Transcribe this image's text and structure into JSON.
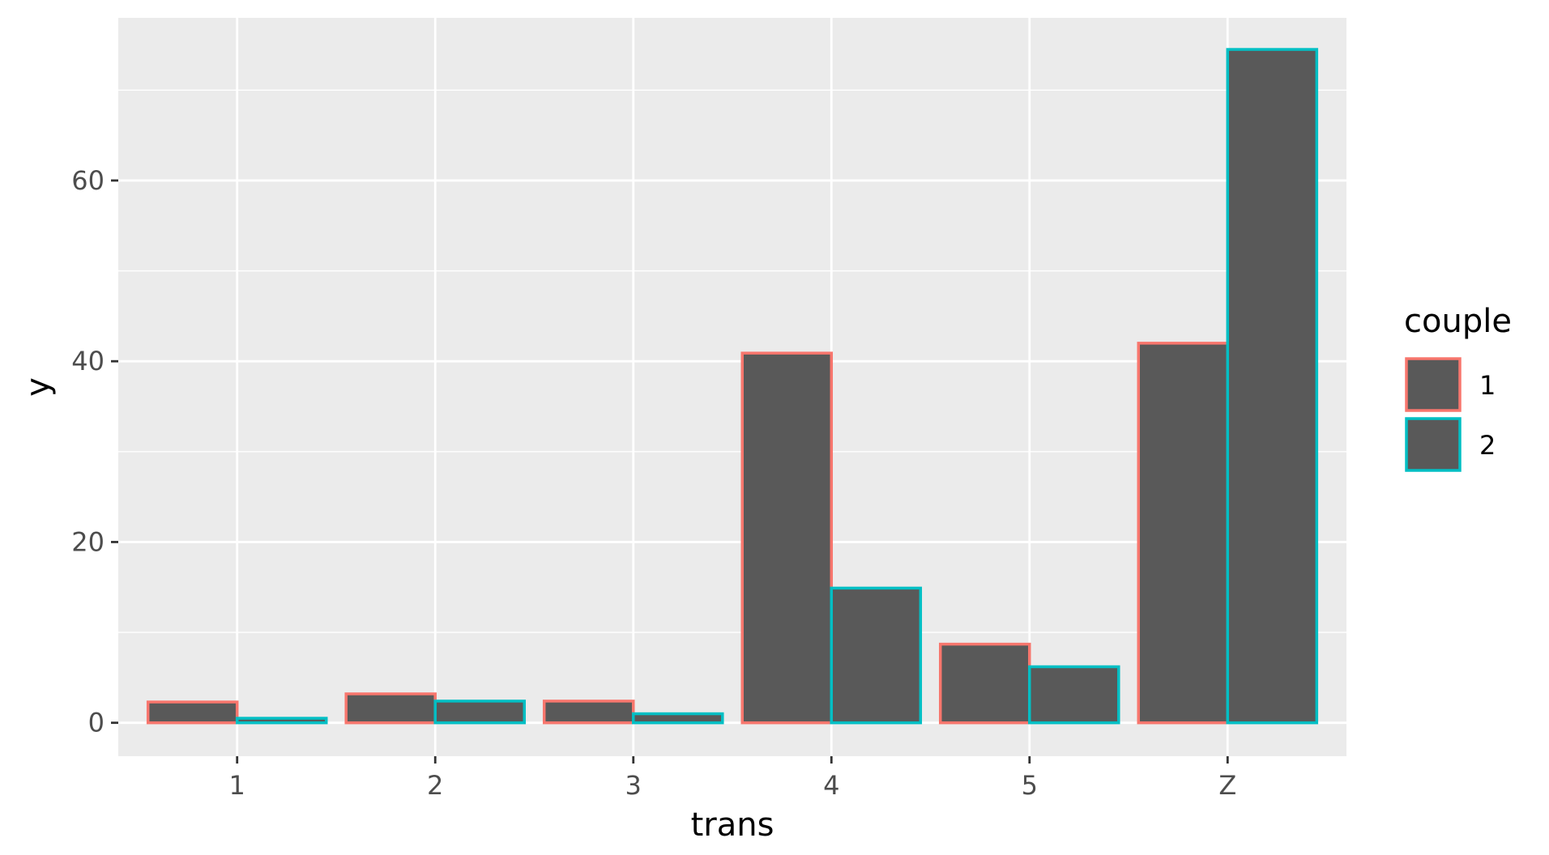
{
  "chart_data": {
    "type": "bar",
    "categories": [
      "1",
      "2",
      "3",
      "4",
      "5",
      "Z"
    ],
    "xlabel": "trans",
    "ylabel": "y",
    "ylim": [
      -3.7,
      78
    ],
    "yticks": [
      0,
      20,
      40,
      60
    ],
    "grid": true,
    "legend": {
      "title": "couple",
      "position": "right"
    },
    "series": [
      {
        "name": "1",
        "color": "#F8766D",
        "values": [
          2.3,
          3.2,
          2.4,
          40.9,
          8.7,
          42
        ]
      },
      {
        "name": "2",
        "color": "#00BFC4",
        "values": [
          0.5,
          2.4,
          1.0,
          14.9,
          6.2,
          74.5
        ]
      }
    ],
    "bar_fill": "#595959",
    "panel_background": "#EBEBEB"
  }
}
